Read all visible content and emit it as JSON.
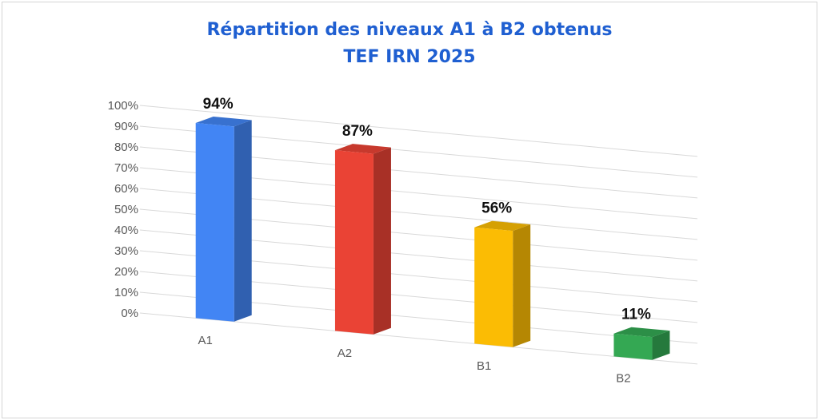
{
  "chart_data": {
    "type": "bar",
    "title": "Répartition des niveaux A1 à B2 obtenus",
    "subtitle": "TEF IRN 2025",
    "categories": [
      "A1",
      "A2",
      "B1",
      "B2"
    ],
    "values": [
      94,
      87,
      56,
      11
    ],
    "data_labels": [
      "94%",
      "87%",
      "56%",
      "11%"
    ],
    "ylim": [
      0,
      100
    ],
    "y_ticks": [
      "0%",
      "10%",
      "20%",
      "30%",
      "40%",
      "50%",
      "60%",
      "70%",
      "80%",
      "90%",
      "100%"
    ],
    "grid": true,
    "style": "3d-column",
    "colors": [
      "#4285f4",
      "#ea4335",
      "#fbbc04",
      "#34a853"
    ]
  }
}
